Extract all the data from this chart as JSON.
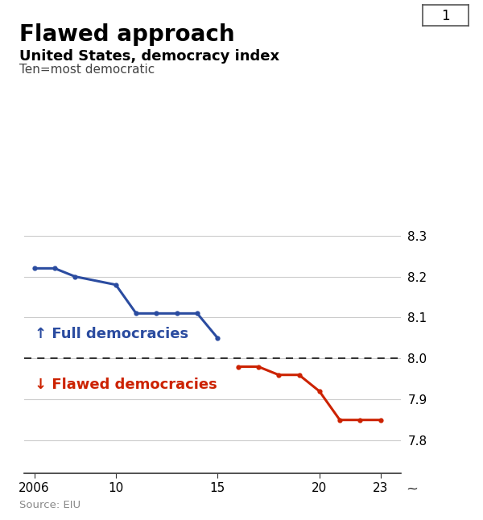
{
  "title": "Flawed approach",
  "subtitle": "United States, democracy index",
  "subtitle2": "Ten=most democratic",
  "source": "Source: EIU",
  "blue_data": {
    "years": [
      2006,
      2007,
      2008,
      2010,
      2011,
      2012,
      2013,
      2014,
      2015
    ],
    "values": [
      8.22,
      8.22,
      8.2,
      8.18,
      8.11,
      8.11,
      8.11,
      8.11,
      8.05
    ]
  },
  "red_data": {
    "years": [
      2016,
      2017,
      2018,
      2019,
      2020,
      2021,
      2022,
      2023
    ],
    "values": [
      7.98,
      7.98,
      7.96,
      7.96,
      7.92,
      7.85,
      7.85,
      7.85
    ]
  },
  "transition_blue": {
    "year": 2015,
    "value": 8.05
  },
  "transition_red": {
    "year": 2016,
    "value": 7.98
  },
  "threshold": 8.0,
  "ylim": [
    7.72,
    8.38
  ],
  "yticks": [
    7.8,
    7.9,
    8.0,
    8.1,
    8.2,
    8.3
  ],
  "xlim": [
    2005.5,
    2024.0
  ],
  "xticks": [
    2006,
    2010,
    2015,
    2020,
    2023
  ],
  "xtick_labels": [
    "2006",
    "10",
    "15",
    "20",
    "23"
  ],
  "blue_color": "#2b4ca0",
  "red_color": "#cc2200",
  "line_width": 2.2,
  "marker_size": 4.5,
  "full_label": "↑ Full democracies",
  "flawed_label": "↓ Flawed democracies",
  "accent_color": "#cc0000",
  "box_label": "1",
  "background_color": "#ffffff",
  "grid_color": "#cccccc",
  "title_fontsize": 20,
  "subtitle_fontsize": 13,
  "label_fontsize": 13
}
